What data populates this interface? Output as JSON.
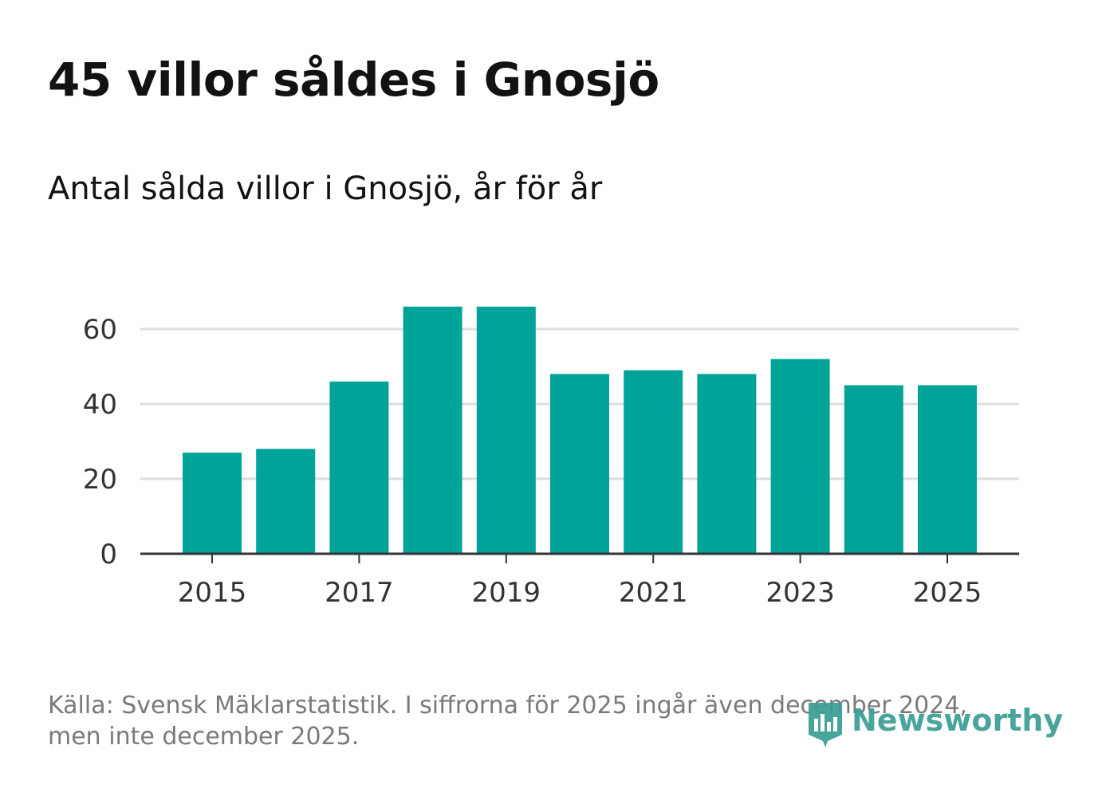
{
  "title": "45 villor såldes i Gnosjö",
  "subtitle": "Antal sålda villor i Gnosjö, år för år",
  "source": "Källa: Svensk Mäklarstatistik. I siffrorna för 2025 ingår även december 2024, men inte december 2025.",
  "logo": {
    "text": "Newsworthy",
    "icon": "bar-chart-badge-icon"
  },
  "colors": {
    "bar": "#00a398",
    "grid": "#dddddd",
    "axis": "#333333",
    "text": "#121212",
    "source": "#7a7a7a",
    "logo": "#3a9d93"
  },
  "chart_data": {
    "type": "bar",
    "title": "45 villor såldes i Gnosjö",
    "subtitle": "Antal sålda villor i Gnosjö, år för år",
    "xlabel": "",
    "ylabel": "",
    "categories": [
      "2015",
      "2016",
      "2017",
      "2018",
      "2019",
      "2020",
      "2021",
      "2022",
      "2023",
      "2024",
      "2025"
    ],
    "values": [
      27,
      28,
      46,
      66,
      66,
      48,
      49,
      48,
      52,
      45,
      45
    ],
    "x_tick_labels": [
      "2015",
      "2017",
      "2019",
      "2021",
      "2023",
      "2025"
    ],
    "y_ticks": [
      0,
      20,
      40,
      60
    ],
    "ylim": [
      0,
      70
    ],
    "grid": true,
    "legend": "none"
  }
}
